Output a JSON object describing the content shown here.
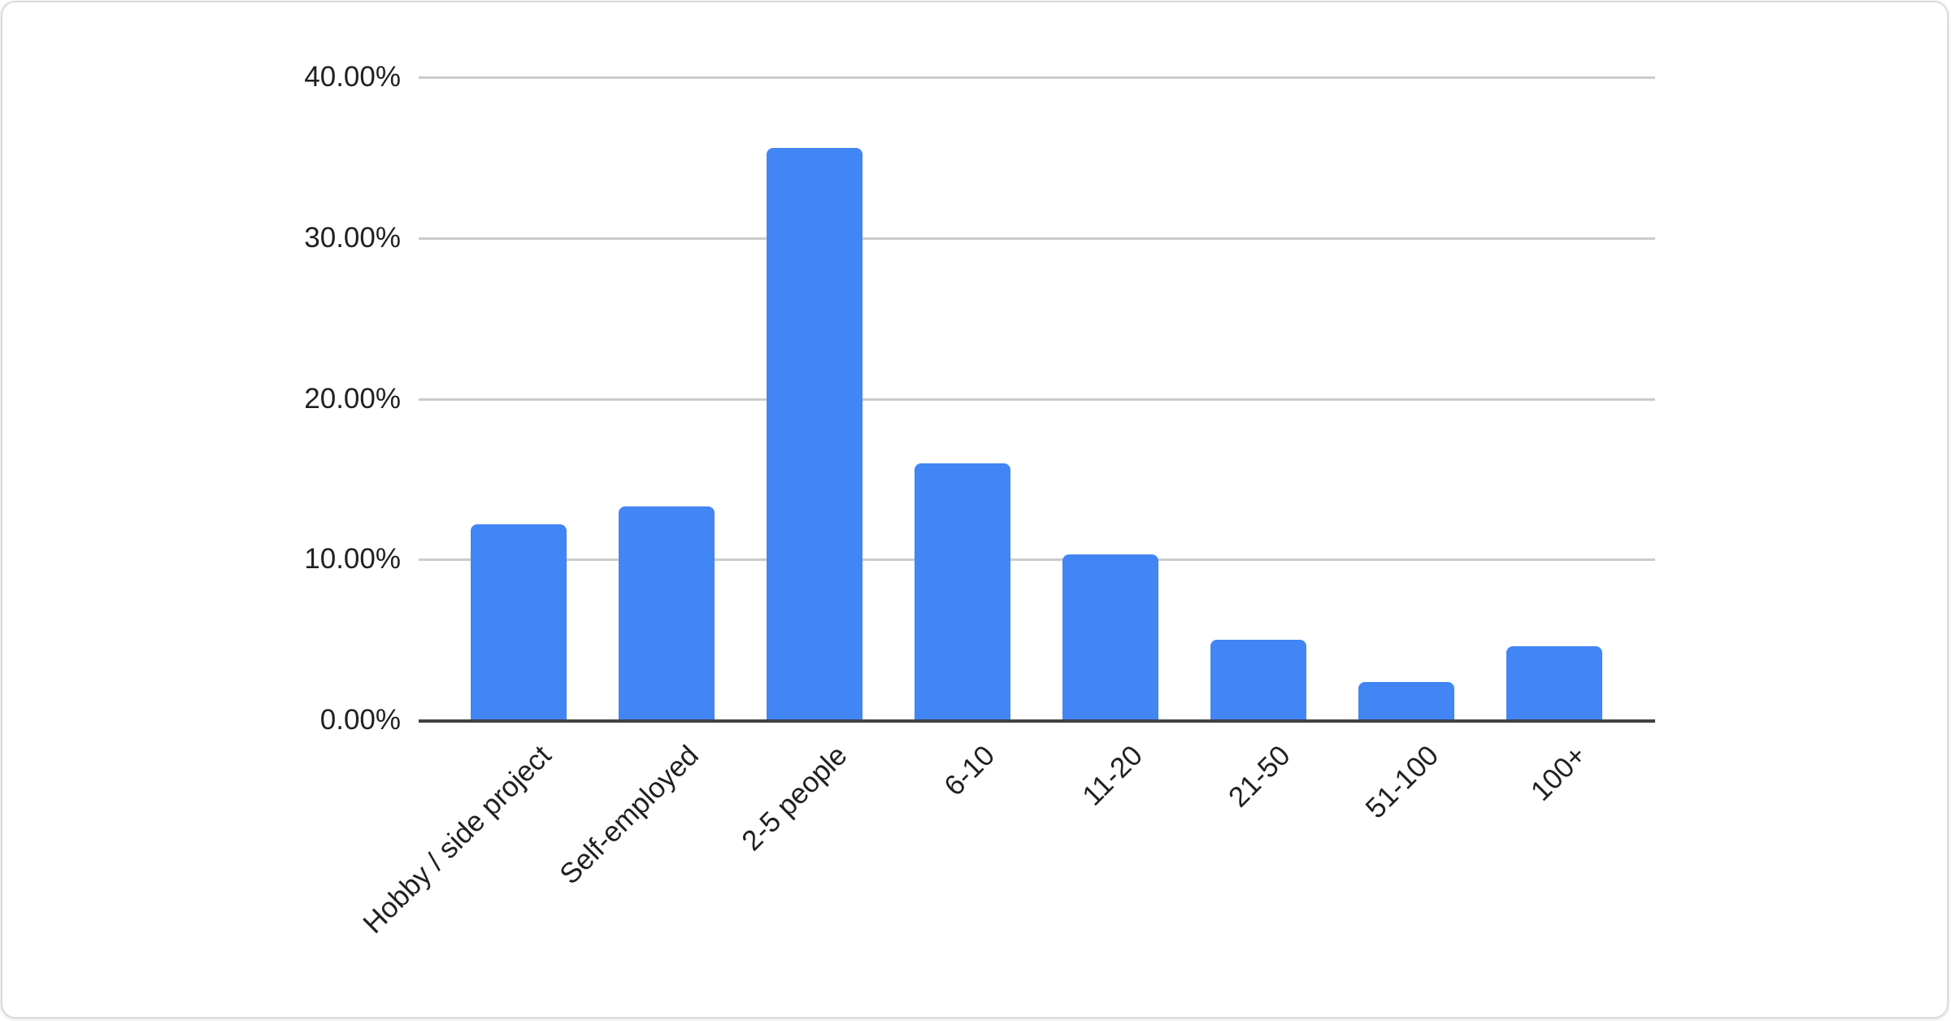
{
  "chart_data": {
    "type": "bar",
    "title": "",
    "xlabel": "",
    "ylabel": "",
    "categories": [
      "Hobby / side project",
      "Self-employed",
      "2-5 people",
      "6-10",
      "11-20",
      "21-50",
      "51-100",
      "100+"
    ],
    "values": [
      12.2,
      13.3,
      35.6,
      16.0,
      10.3,
      5.0,
      2.4,
      4.6
    ],
    "value_unit": "%",
    "ylim": [
      0,
      40
    ],
    "yticks": [
      {
        "value": 0,
        "label": "0.00%"
      },
      {
        "value": 10,
        "label": "10.00%"
      },
      {
        "value": 20,
        "label": "20.00%"
      },
      {
        "value": 30,
        "label": "30.00%"
      },
      {
        "value": 40,
        "label": "40.00%"
      }
    ],
    "grid": true,
    "legend": "none",
    "colors": {
      "bar": "#4285f4",
      "gridline": "#cccccc",
      "baseline": "#424242",
      "axis_label": "#1f2023",
      "card_border": "#d8dbde",
      "background": "#ffffff"
    }
  }
}
